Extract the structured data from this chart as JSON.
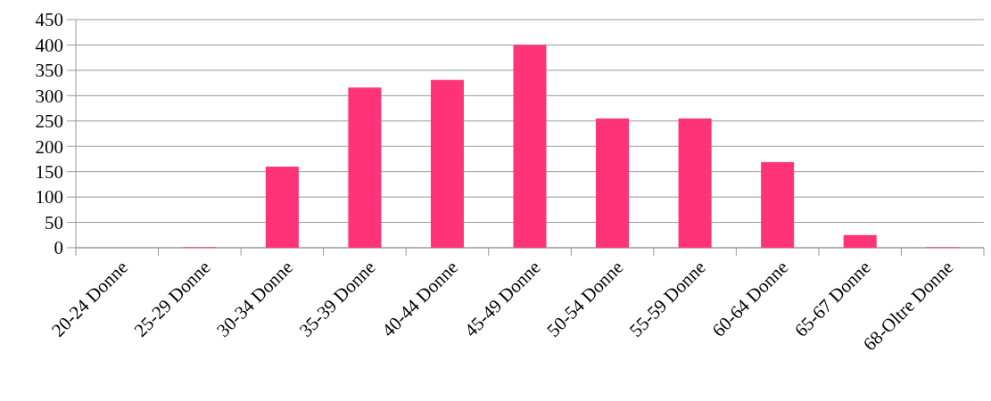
{
  "chart_data": {
    "type": "bar",
    "categories": [
      "20-24 Donne",
      "25-29 Donne",
      "30-34 Donne",
      "35-39 Donne",
      "40-44 Donne",
      "45-49 Donne",
      "50-54 Donne",
      "55-59 Donne",
      "60-64 Donne",
      "65-67 Donne",
      "68-Oltre Donne"
    ],
    "values": [
      0,
      1,
      160,
      316,
      331,
      400,
      255,
      255,
      169,
      25,
      1
    ],
    "color": "#ff3377",
    "ylim": [
      0,
      450
    ],
    "yticks": [
      0,
      50,
      100,
      150,
      200,
      250,
      300,
      350,
      400,
      450
    ],
    "grid": "y"
  }
}
